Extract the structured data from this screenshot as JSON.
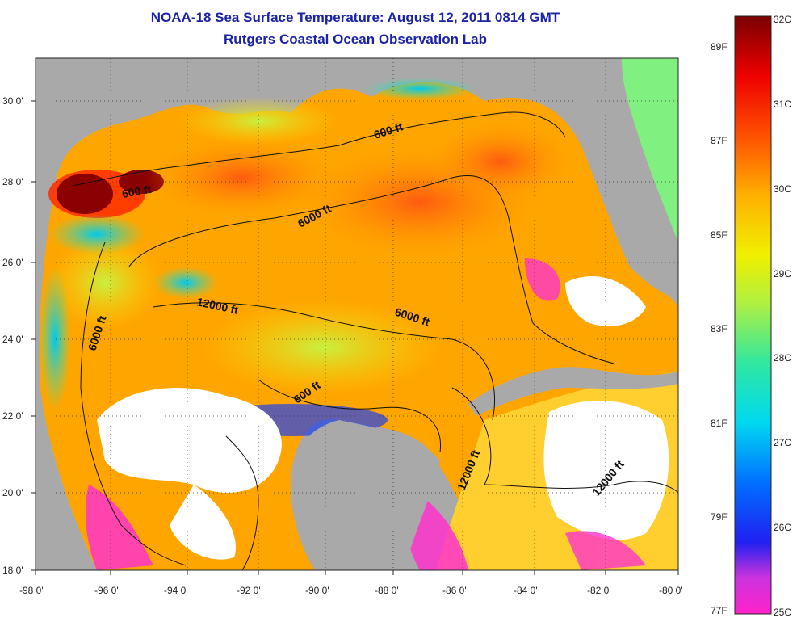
{
  "title": {
    "line1": "NOAA-18 Sea Surface Temperature:  August 12, 2011 0814 GMT",
    "line2": "Rutgers Coastal Ocean Observation Lab"
  },
  "axes": {
    "x_ticks": [
      "-98 0'",
      "-96 0'",
      "-94 0'",
      "-92 0'",
      "-90 0'",
      "-88 0'",
      "-86 0'",
      "-84 0'",
      "-82 0'",
      "-80 0'"
    ],
    "y_ticks": [
      "30 0'",
      "28 0'",
      "26 0'",
      "24 0'",
      "22 0'",
      "20 0'",
      "18 0'"
    ]
  },
  "contour_labels": [
    {
      "text": "600 ft",
      "rotate": -10
    },
    {
      "text": "600 ft",
      "rotate": -18
    },
    {
      "text": "6000 ft",
      "rotate": -28
    },
    {
      "text": "12000 ft",
      "rotate": 12
    },
    {
      "text": "6000 ft",
      "rotate": 18
    },
    {
      "text": "6000 ft",
      "rotate": -72
    },
    {
      "text": "600 ft",
      "rotate": -35
    },
    {
      "text": "12000 ft",
      "rotate": -68
    },
    {
      "text": "12000 ft",
      "rotate": -50
    }
  ],
  "colorbar": {
    "celsius_labels": [
      "32C",
      "31C",
      "30C",
      "29C",
      "28C",
      "27C",
      "26C",
      "25C"
    ],
    "fahrenheit_labels": [
      "89F",
      "87F",
      "85F",
      "83F",
      "81F",
      "79F",
      "77F"
    ],
    "colors": [
      "#e61fbf",
      "#ff33cc",
      "#9933ff",
      "#2222ee",
      "#0088ff",
      "#00d4f0",
      "#00e0a0",
      "#a8f040",
      "#f0f000",
      "#ffb000",
      "#ff6000",
      "#ff1010",
      "#d00000",
      "#800000"
    ]
  },
  "colors": {
    "land": "#a9a9a9",
    "title": "#1a23a8",
    "cloud": "#ffffff"
  }
}
